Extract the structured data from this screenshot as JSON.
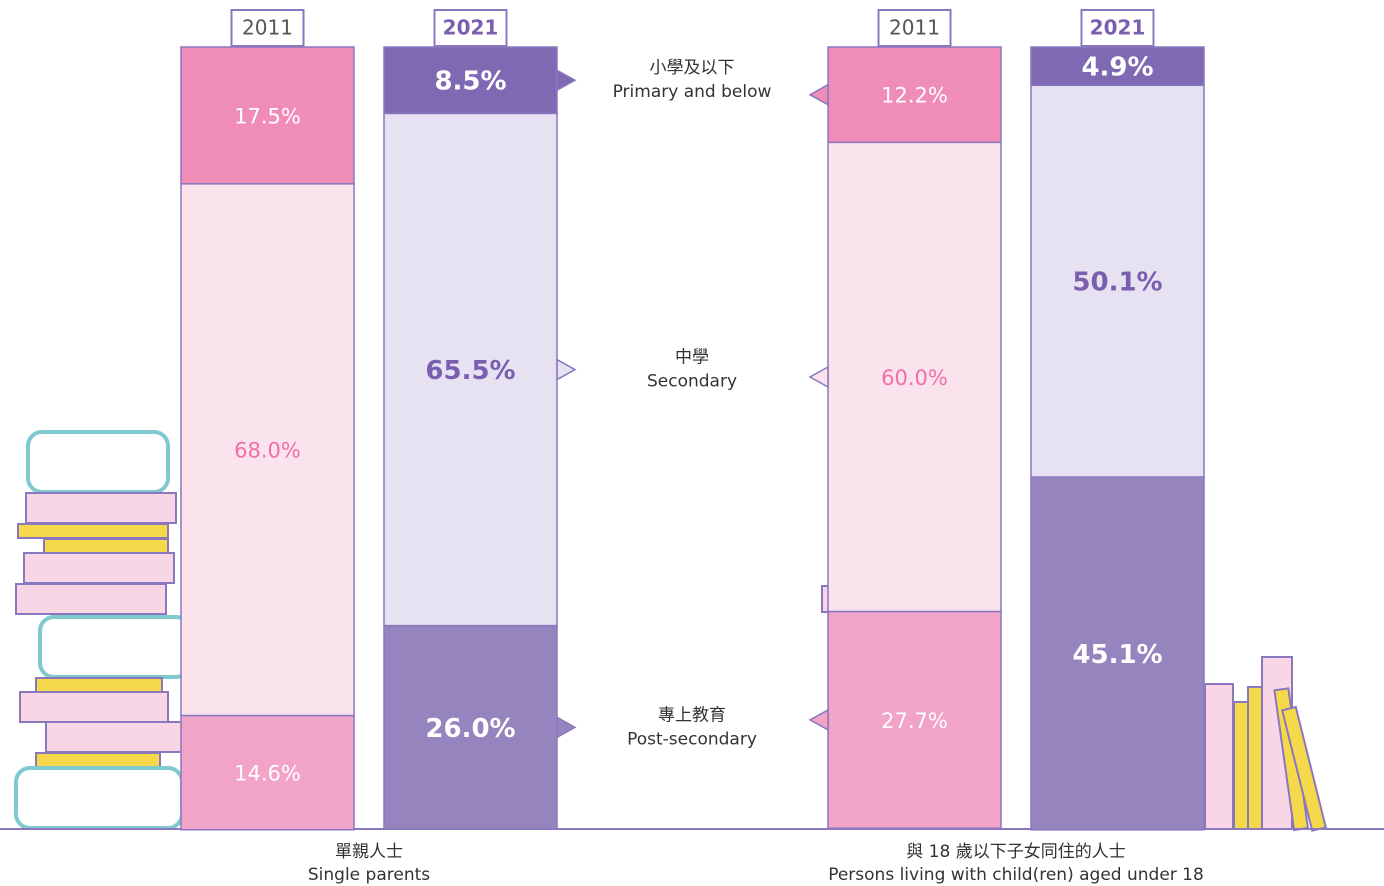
{
  "chart_data": {
    "type": "stacked_bar",
    "levels": [
      {
        "zh": "小學及以下",
        "en": "Primary and below"
      },
      {
        "zh": "中學",
        "en": "Secondary"
      },
      {
        "zh": "專上教育",
        "en": "Post-secondary"
      }
    ],
    "groups": [
      {
        "zh": "單親人士",
        "en": "Single parents",
        "bars": [
          {
            "year": "2011",
            "values": [
              17.5,
              68.0,
              14.6
            ],
            "value_labels": [
              "17.5%",
              "68.0%",
              "14.6%"
            ],
            "colors": [
              "#f08cb8",
              "#fbe3ee",
              "#f2a3c8"
            ],
            "text_colors": [
              "#ffffff",
              "#f06fa6",
              "#ffffff"
            ]
          },
          {
            "year": "2021",
            "values": [
              8.5,
              65.5,
              26.0
            ],
            "value_labels": [
              "8.5%",
              "65.5%",
              "26.0%"
            ],
            "colors": [
              "#7f69b3",
              "#e6e2f1",
              "#9584bd"
            ],
            "text_colors": [
              "#ffffff",
              "#7a5fb0",
              "#ffffff"
            ]
          }
        ]
      },
      {
        "zh": "與 18 歲以下子女同住的人士",
        "en": "Persons living with child(ren) aged under 18",
        "bars": [
          {
            "year": "2011",
            "values": [
              12.2,
              60.0,
              27.7
            ],
            "value_labels": [
              "12.2%",
              "60.0%",
              "27.7%"
            ],
            "colors": [
              "#f08cb8",
              "#fbe3ee",
              "#f2a3c8"
            ],
            "text_colors": [
              "#ffffff",
              "#f06fa6",
              "#ffffff"
            ]
          },
          {
            "year": "2021",
            "values": [
              4.9,
              50.1,
              45.1
            ],
            "value_labels": [
              "4.9%",
              "50.1%",
              "45.1%"
            ],
            "colors": [
              "#7f69b3",
              "#e6e2f1",
              "#9584bd"
            ],
            "text_colors": [
              "#ffffff",
              "#7a5fb0",
              "#ffffff"
            ]
          }
        ]
      }
    ]
  }
}
